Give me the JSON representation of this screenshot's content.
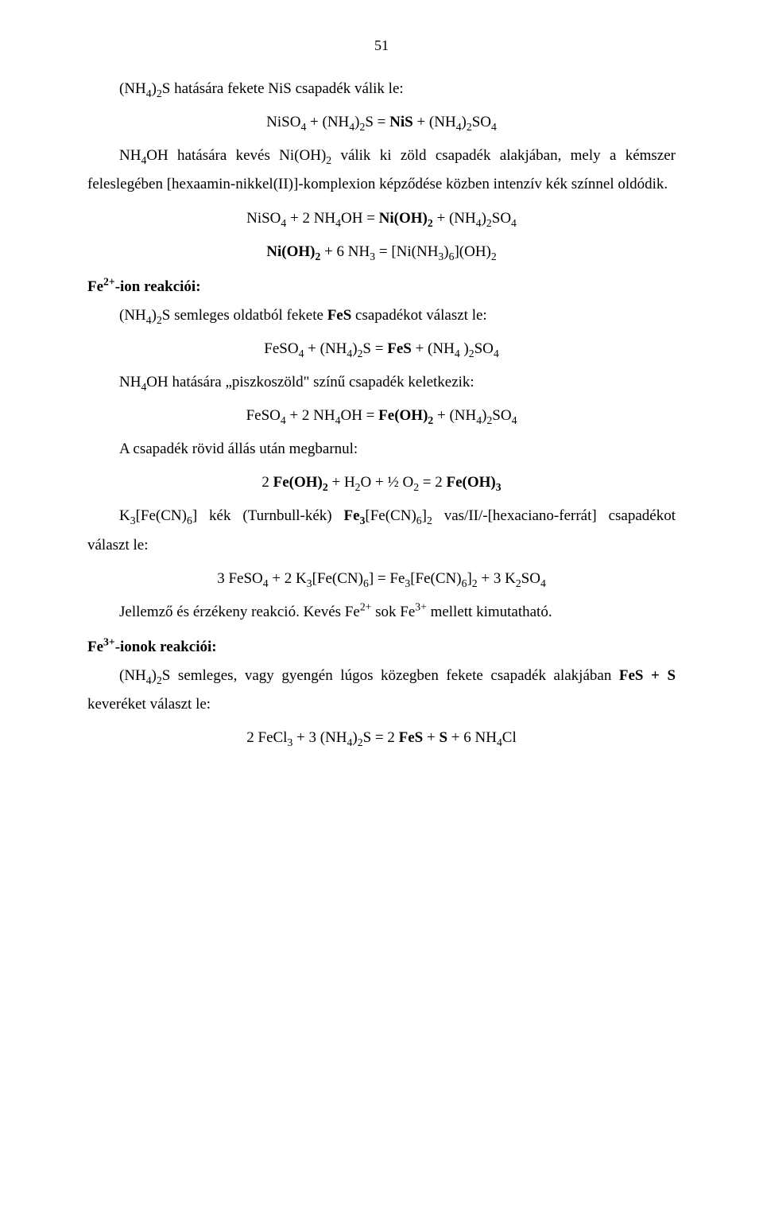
{
  "page_number": "51",
  "p1_a": "(NH",
  "p1_b": ")",
  "p1_c": "S hatására fekete NiS csapadék válik le:",
  "eq1_a": "NiSO",
  "eq1_b": " + (NH",
  "eq1_c": ")",
  "eq1_d": "S = ",
  "eq1_e": "NiS",
  "eq1_f": " + (NH",
  "eq1_g": ")",
  "eq1_h": "SO",
  "p2_a": "NH",
  "p2_b": "OH hatására kevés Ni(OH)",
  "p2_c": " válik ki zöld csapadék alakjában, mely a kémszer feleslegében [hexaamin-nikkel(II)]-komplexion képződése közben intenzív kék színnel oldódik.",
  "eq2_a": "NiSO",
  "eq2_b": " + 2 NH",
  "eq2_c": "OH = ",
  "eq2_d": "Ni(OH)",
  "eq2_e": " + (NH",
  "eq2_f": ")",
  "eq2_g": "SO",
  "eq3_a": "Ni(OH)",
  "eq3_b": " + 6 NH",
  "eq3_c": " = [Ni(NH",
  "eq3_d": ")",
  "eq3_e": "](OH)",
  "h1_a": "Fe",
  "h1_b": "-ion reakciói:",
  "p3_a": "(NH",
  "p3_b": ")",
  "p3_c": "S semleges oldatból fekete ",
  "p3_d": "FeS",
  "p3_e": " csapadékot választ le:",
  "eq4_a": "FeSO",
  "eq4_b": " + (NH",
  "eq4_c": ")",
  "eq4_d": "S = ",
  "eq4_e": "FeS",
  "eq4_f": " + (NH",
  "eq4_g": " )",
  "eq4_h": "SO",
  "p4_a": "NH",
  "p4_b": "OH hatására „piszkoszöld\" színű csapadék keletkezik:",
  "eq5_a": "FeSO",
  "eq5_b": " + 2 NH",
  "eq5_c": "OH = ",
  "eq5_d": "Fe(OH)",
  "eq5_e": " + (NH",
  "eq5_f": ")",
  "eq5_g": "SO",
  "p5": "A csapadék rövid állás után megbarnul:",
  "eq6_a": "2 ",
  "eq6_b": "Fe(OH)",
  "eq6_c": " + H",
  "eq6_d": "O + ½ O",
  "eq6_e": " = 2 ",
  "eq6_f": "Fe(OH)",
  "p6_a": "K",
  "p6_b": "[Fe(CN)",
  "p6_c": "]",
  "p6_d": " kék (Turnbull-kék) ",
  "p6_e": "Fe",
  "p6_f": "[Fe(CN)",
  "p6_g": "]",
  "p6_h": " vas/II/-[hexaciano-ferrát] csapadékot választ le:",
  "eq7_a": "3 FeSO",
  "eq7_b": " + 2 K",
  "eq7_c": "[Fe(CN)",
  "eq7_d": "]",
  "eq7_e": " = Fe",
  "eq7_f": "[Fe(CN)",
  "eq7_g": "]",
  "eq7_h": " + 3 K",
  "eq7_i": "SO",
  "p7_a": "Jellemző és érzékeny reakció. Kevés Fe",
  "p7_b": " sok Fe",
  "p7_c": " mellett kimutatható.",
  "h2_a": "Fe",
  "h2_b": "-ionok reakciói:",
  "p8_a": "(NH",
  "p8_b": ")",
  "p8_c": "S semleges, vagy gyengén lúgos közegben fekete csapadék alakjában ",
  "p8_d": "FeS + S",
  "p8_e": " keveréket választ le:",
  "eq8_a": "2 FeCl",
  "eq8_b": " + 3 (NH",
  "eq8_c": ")",
  "eq8_d": "S = 2 ",
  "eq8_e": "FeS",
  "eq8_f": " + ",
  "eq8_g": "S",
  "eq8_h": " + 6 NH",
  "eq8_i": "Cl",
  "s2": "2",
  "s3": "3",
  "s4": "4",
  "s6": "6",
  "sup2p": "2+",
  "sup3p": "3+"
}
